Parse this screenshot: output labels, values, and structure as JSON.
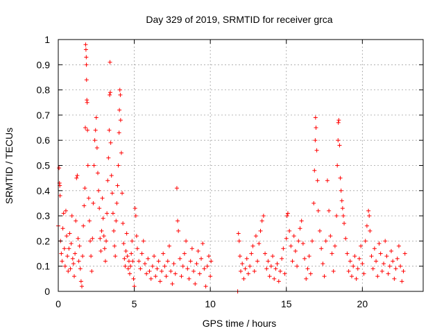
{
  "chart_data": {
    "type": "scatter",
    "title": "Day 329 of 2019, SRMTID for receiver grca",
    "xlabel": "GPS time / hours",
    "ylabel": "SRMTID / TECUs",
    "xlim": [
      0,
      24
    ],
    "ylim": [
      0,
      1
    ],
    "grid": true,
    "marker": "+",
    "color": "#ff0000",
    "xticks": [
      0,
      5,
      10,
      15,
      20
    ],
    "xtick_labels": [
      "0",
      "5",
      "10",
      "15",
      "20"
    ],
    "yticks": [
      0,
      0.1,
      0.2,
      0.3,
      0.4,
      0.5,
      0.6,
      0.7,
      0.8,
      0.9,
      1
    ],
    "ytick_labels": [
      "0",
      "0.1",
      "0.2",
      "0.3",
      "0.4",
      "0.5",
      "0.6",
      "0.7",
      "0.8",
      "0.9",
      "1"
    ],
    "series": [
      {
        "name": "SRMTID",
        "points": [
          [
            0.0,
            0.26
          ],
          [
            0.05,
            0.49
          ],
          [
            0.08,
            0.43
          ],
          [
            0.1,
            0.42
          ],
          [
            0.12,
            0.38
          ],
          [
            0.15,
            0.2
          ],
          [
            0.2,
            0.15
          ],
          [
            0.25,
            0.12
          ],
          [
            0.3,
            0.25
          ],
          [
            0.35,
            0.31
          ],
          [
            0.4,
            0.17
          ],
          [
            0.45,
            0.1
          ],
          [
            0.5,
            0.32
          ],
          [
            0.55,
            0.22
          ],
          [
            0.6,
            0.14
          ],
          [
            0.65,
            0.08
          ],
          [
            0.7,
            0.17
          ],
          [
            0.75,
            0.23
          ],
          [
            0.8,
            0.09
          ],
          [
            0.85,
            0.19
          ],
          [
            0.9,
            0.3
          ],
          [
            0.95,
            0.13
          ],
          [
            1.0,
            0.11
          ],
          [
            1.05,
            0.06
          ],
          [
            1.1,
            0.15
          ],
          [
            1.15,
            0.28
          ],
          [
            1.2,
            0.45
          ],
          [
            1.25,
            0.46
          ],
          [
            1.3,
            0.21
          ],
          [
            1.35,
            0.12
          ],
          [
            1.4,
            0.18
          ],
          [
            1.45,
            0.09
          ],
          [
            1.5,
            0.04
          ],
          [
            1.55,
            0.02
          ],
          [
            1.6,
            0.14
          ],
          [
            1.65,
            0.26
          ],
          [
            1.7,
            0.34
          ],
          [
            1.75,
            0.41
          ],
          [
            1.78,
            0.65
          ],
          [
            1.8,
            0.98
          ],
          [
            1.82,
            0.96
          ],
          [
            1.84,
            0.93
          ],
          [
            1.85,
            0.9
          ],
          [
            1.86,
            0.84
          ],
          [
            1.88,
            0.76
          ],
          [
            1.9,
            0.75
          ],
          [
            1.92,
            0.64
          ],
          [
            1.95,
            0.5
          ],
          [
            2.0,
            0.37
          ],
          [
            2.05,
            0.28
          ],
          [
            2.1,
            0.2
          ],
          [
            2.15,
            0.14
          ],
          [
            2.2,
            0.08
          ],
          [
            2.25,
            0.21
          ],
          [
            2.3,
            0.35
          ],
          [
            2.35,
            0.5
          ],
          [
            2.4,
            0.6
          ],
          [
            2.45,
            0.64
          ],
          [
            2.5,
            0.69
          ],
          [
            2.55,
            0.57
          ],
          [
            2.6,
            0.47
          ],
          [
            2.65,
            0.4
          ],
          [
            2.7,
            0.33
          ],
          [
            2.75,
            0.21
          ],
          [
            2.8,
            0.16
          ],
          [
            2.85,
            0.24
          ],
          [
            2.9,
            0.37
          ],
          [
            2.95,
            0.29
          ],
          [
            3.0,
            0.22
          ],
          [
            3.05,
            0.17
          ],
          [
            3.1,
            0.12
          ],
          [
            3.15,
            0.2
          ],
          [
            3.2,
            0.31
          ],
          [
            3.25,
            0.44
          ],
          [
            3.3,
            0.53
          ],
          [
            3.35,
            0.64
          ],
          [
            3.38,
            0.78
          ],
          [
            3.4,
            0.91
          ],
          [
            3.42,
            0.79
          ],
          [
            3.45,
            0.59
          ],
          [
            3.5,
            0.46
          ],
          [
            3.55,
            0.39
          ],
          [
            3.6,
            0.31
          ],
          [
            3.65,
            0.24
          ],
          [
            3.7,
            0.18
          ],
          [
            3.75,
            0.14
          ],
          [
            3.8,
            0.28
          ],
          [
            3.85,
            0.35
          ],
          [
            3.9,
            0.42
          ],
          [
            3.95,
            0.5
          ],
          [
            4.0,
            0.63
          ],
          [
            4.02,
            0.72
          ],
          [
            4.05,
            0.8
          ],
          [
            4.08,
            0.78
          ],
          [
            4.1,
            0.68
          ],
          [
            4.15,
            0.55
          ],
          [
            4.2,
            0.39
          ],
          [
            4.25,
            0.27
          ],
          [
            4.3,
            0.19
          ],
          [
            4.35,
            0.13
          ],
          [
            4.4,
            0.1
          ],
          [
            4.45,
            0.16
          ],
          [
            4.5,
            0.23
          ],
          [
            4.55,
            0.14
          ],
          [
            4.6,
            0.09
          ],
          [
            4.65,
            0.12
          ],
          [
            4.7,
            0.07
          ],
          [
            4.75,
            0.1
          ],
          [
            4.8,
            0.15
          ],
          [
            4.85,
            0.2
          ],
          [
            4.9,
            0.12
          ],
          [
            4.95,
            0.05
          ],
          [
            5.0,
            0.02
          ],
          [
            5.05,
            0.33
          ],
          [
            5.1,
            0.3
          ],
          [
            5.15,
            0.22
          ],
          [
            5.2,
            0.17
          ],
          [
            5.3,
            0.12
          ],
          [
            5.4,
            0.09
          ],
          [
            5.5,
            0.15
          ],
          [
            5.6,
            0.2
          ],
          [
            5.7,
            0.11
          ],
          [
            5.8,
            0.07
          ],
          [
            5.9,
            0.13
          ],
          [
            6.0,
            0.08
          ],
          [
            6.1,
            0.05
          ],
          [
            6.2,
            0.1
          ],
          [
            6.3,
            0.14
          ],
          [
            6.4,
            0.06
          ],
          [
            6.5,
            0.09
          ],
          [
            6.6,
            0.12
          ],
          [
            6.7,
            0.04
          ],
          [
            6.8,
            0.08
          ],
          [
            6.9,
            0.15
          ],
          [
            7.0,
            0.1
          ],
          [
            7.1,
            0.06
          ],
          [
            7.2,
            0.12
          ],
          [
            7.3,
            0.18
          ],
          [
            7.4,
            0.08
          ],
          [
            7.5,
            0.03
          ],
          [
            7.6,
            0.11
          ],
          [
            7.7,
            0.07
          ],
          [
            7.8,
            0.41
          ],
          [
            7.85,
            0.28
          ],
          [
            7.9,
            0.24
          ],
          [
            8.0,
            0.13
          ],
          [
            8.1,
            0.06
          ],
          [
            8.2,
            0.1
          ],
          [
            8.3,
            0.15
          ],
          [
            8.4,
            0.2
          ],
          [
            8.5,
            0.09
          ],
          [
            8.6,
            0.05
          ],
          [
            8.7,
            0.12
          ],
          [
            8.8,
            0.17
          ],
          [
            8.9,
            0.08
          ],
          [
            9.0,
            0.03
          ],
          [
            9.1,
            0.11
          ],
          [
            9.2,
            0.16
          ],
          [
            9.3,
            0.07
          ],
          [
            9.4,
            0.13
          ],
          [
            9.5,
            0.19
          ],
          [
            9.6,
            0.09
          ],
          [
            9.7,
            0.02
          ],
          [
            9.8,
            0.1
          ],
          [
            9.9,
            0.14
          ],
          [
            10.0,
            0.06
          ],
          [
            10.05,
            0.12
          ],
          [
            11.8,
            0.0
          ],
          [
            11.85,
            0.23
          ],
          [
            11.9,
            0.2
          ],
          [
            11.95,
            0.14
          ],
          [
            12.0,
            0.08
          ],
          [
            12.1,
            0.11
          ],
          [
            12.2,
            0.05
          ],
          [
            12.3,
            0.09
          ],
          [
            12.4,
            0.13
          ],
          [
            12.5,
            0.07
          ],
          [
            12.6,
            0.1
          ],
          [
            12.7,
            0.15
          ],
          [
            12.8,
            0.18
          ],
          [
            12.9,
            0.08
          ],
          [
            13.0,
            0.22
          ],
          [
            13.1,
            0.12
          ],
          [
            13.2,
            0.19
          ],
          [
            13.3,
            0.24
          ],
          [
            13.4,
            0.28
          ],
          [
            13.5,
            0.3
          ],
          [
            13.6,
            0.15
          ],
          [
            13.7,
            0.09
          ],
          [
            13.8,
            0.12
          ],
          [
            13.9,
            0.06
          ],
          [
            14.0,
            0.1
          ],
          [
            14.1,
            0.14
          ],
          [
            14.2,
            0.05
          ],
          [
            14.3,
            0.09
          ],
          [
            14.4,
            0.11
          ],
          [
            14.5,
            0.04
          ],
          [
            14.6,
            0.08
          ],
          [
            14.7,
            0.13
          ],
          [
            14.8,
            0.17
          ],
          [
            14.9,
            0.07
          ],
          [
            15.0,
            0.21
          ],
          [
            15.05,
            0.3
          ],
          [
            15.1,
            0.31
          ],
          [
            15.2,
            0.24
          ],
          [
            15.3,
            0.18
          ],
          [
            15.4,
            0.12
          ],
          [
            15.5,
            0.22
          ],
          [
            15.6,
            0.16
          ],
          [
            15.7,
            0.1
          ],
          [
            15.8,
            0.2
          ],
          [
            15.9,
            0.25
          ],
          [
            16.0,
            0.28
          ],
          [
            16.1,
            0.19
          ],
          [
            16.2,
            0.13
          ],
          [
            16.3,
            0.05
          ],
          [
            16.4,
            0.09
          ],
          [
            16.5,
            0.14
          ],
          [
            16.6,
            0.07
          ],
          [
            16.7,
            0.2
          ],
          [
            16.8,
            0.35
          ],
          [
            16.85,
            0.48
          ],
          [
            16.9,
            0.6
          ],
          [
            16.92,
            0.69
          ],
          [
            16.95,
            0.65
          ],
          [
            17.0,
            0.56
          ],
          [
            17.05,
            0.44
          ],
          [
            17.1,
            0.32
          ],
          [
            17.2,
            0.24
          ],
          [
            17.3,
            0.17
          ],
          [
            17.4,
            0.11
          ],
          [
            17.5,
            0.06
          ],
          [
            17.6,
            0.2
          ],
          [
            17.7,
            0.44
          ],
          [
            17.8,
            0.32
          ],
          [
            17.9,
            0.22
          ],
          [
            18.0,
            0.15
          ],
          [
            18.1,
            0.08
          ],
          [
            18.2,
            0.18
          ],
          [
            18.3,
            0.3
          ],
          [
            18.35,
            0.5
          ],
          [
            18.4,
            0.6
          ],
          [
            18.42,
            0.67
          ],
          [
            18.45,
            0.68
          ],
          [
            18.5,
            0.58
          ],
          [
            18.55,
            0.45
          ],
          [
            18.6,
            0.4
          ],
          [
            18.65,
            0.36
          ],
          [
            18.7,
            0.33
          ],
          [
            18.75,
            0.3
          ],
          [
            18.8,
            0.27
          ],
          [
            18.9,
            0.21
          ],
          [
            19.0,
            0.15
          ],
          [
            19.1,
            0.08
          ],
          [
            19.2,
            0.12
          ],
          [
            19.3,
            0.06
          ],
          [
            19.4,
            0.1
          ],
          [
            19.5,
            0.14
          ],
          [
            19.6,
            0.05
          ],
          [
            19.7,
            0.09
          ],
          [
            19.8,
            0.13
          ],
          [
            19.9,
            0.18
          ],
          [
            20.0,
            0.11
          ],
          [
            20.1,
            0.07
          ],
          [
            20.2,
            0.2
          ],
          [
            20.3,
            0.26
          ],
          [
            20.4,
            0.32
          ],
          [
            20.45,
            0.3
          ],
          [
            20.5,
            0.24
          ],
          [
            20.6,
            0.14
          ],
          [
            20.7,
            0.09
          ],
          [
            20.8,
            0.17
          ],
          [
            20.9,
            0.12
          ],
          [
            21.0,
            0.06
          ],
          [
            21.1,
            0.19
          ],
          [
            21.2,
            0.15
          ],
          [
            21.3,
            0.08
          ],
          [
            21.4,
            0.11
          ],
          [
            21.5,
            0.2
          ],
          [
            21.6,
            0.14
          ],
          [
            21.7,
            0.07
          ],
          [
            21.8,
            0.1
          ],
          [
            21.9,
            0.16
          ],
          [
            22.0,
            0.12
          ],
          [
            22.1,
            0.05
          ],
          [
            22.2,
            0.09
          ],
          [
            22.3,
            0.13
          ],
          [
            22.4,
            0.18
          ],
          [
            22.5,
            0.1
          ],
          [
            22.6,
            0.04
          ],
          [
            22.7,
            0.08
          ],
          [
            22.8,
            0.15
          ]
        ]
      }
    ]
  }
}
